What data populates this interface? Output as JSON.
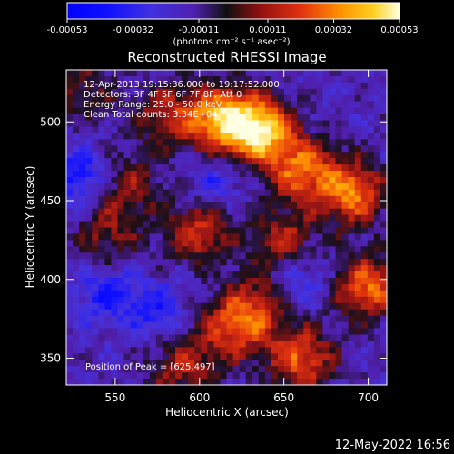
{
  "chart_data": {
    "type": "heatmap",
    "title": "Reconstructed RHESSI Image",
    "xlabel": "Heliocentric X (arcsec)",
    "ylabel": "Heliocentric Y (arcsec)",
    "xlim": [
      521,
      711
    ],
    "ylim": [
      333,
      533
    ],
    "x_ticks": [
      "550",
      "600",
      "650",
      "700"
    ],
    "x_tick_values": [
      550,
      600,
      650,
      700
    ],
    "y_ticks": [
      "350",
      "400",
      "450",
      "500"
    ],
    "y_tick_values": [
      350,
      400,
      450,
      500
    ],
    "colorbar": {
      "range": [
        -0.00053,
        0.00053
      ],
      "tick_labels": [
        "-0.00053",
        "-0.00032",
        "-0.00011",
        "0.00011",
        "0.00032",
        "0.00053"
      ],
      "unit_label": "(photons cm⁻² s⁻¹ asec⁻²)"
    },
    "info_lines": [
      "12-Apr-2013 19:15:36.000 to 19:17:52.000",
      "Detectors: 3F 4F 5F 6F 7F 8F, Att 0",
      "Energy Range: 25.0 - 50.0 keV",
      "Clean    Total counts: 3.34E+04"
    ],
    "peak_label": "Position of Peak = [625,497]",
    "peak": [
      625,
      497
    ],
    "grid_size": 50,
    "bright_blobs": [
      {
        "x": 635,
        "y": 495,
        "amp": 1.0
      },
      {
        "x": 612,
        "y": 502,
        "amp": 0.8
      },
      {
        "x": 660,
        "y": 470,
        "amp": 0.7
      },
      {
        "x": 690,
        "y": 455,
        "amp": 0.75
      },
      {
        "x": 700,
        "y": 395,
        "amp": 0.7
      },
      {
        "x": 660,
        "y": 350,
        "amp": 0.65
      },
      {
        "x": 620,
        "y": 370,
        "amp": 0.6
      },
      {
        "x": 590,
        "y": 345,
        "amp": 0.45
      },
      {
        "x": 600,
        "y": 430,
        "amp": 0.55
      },
      {
        "x": 580,
        "y": 505,
        "amp": 0.45
      },
      {
        "x": 560,
        "y": 460,
        "amp": 0.35
      },
      {
        "x": 545,
        "y": 430,
        "amp": 0.35
      },
      {
        "x": 530,
        "y": 520,
        "amp": 0.3
      },
      {
        "x": 650,
        "y": 425,
        "amp": 0.45
      },
      {
        "x": 635,
        "y": 385,
        "amp": 0.4
      }
    ],
    "dark_blobs": [
      {
        "x": 528,
        "y": 465,
        "amp": 0.7
      },
      {
        "x": 545,
        "y": 390,
        "amp": 0.6
      },
      {
        "x": 575,
        "y": 380,
        "amp": 0.55
      },
      {
        "x": 660,
        "y": 400,
        "amp": 0.5
      },
      {
        "x": 610,
        "y": 460,
        "amp": 0.4
      }
    ],
    "timestamp": "12-May-2022 16:56"
  }
}
